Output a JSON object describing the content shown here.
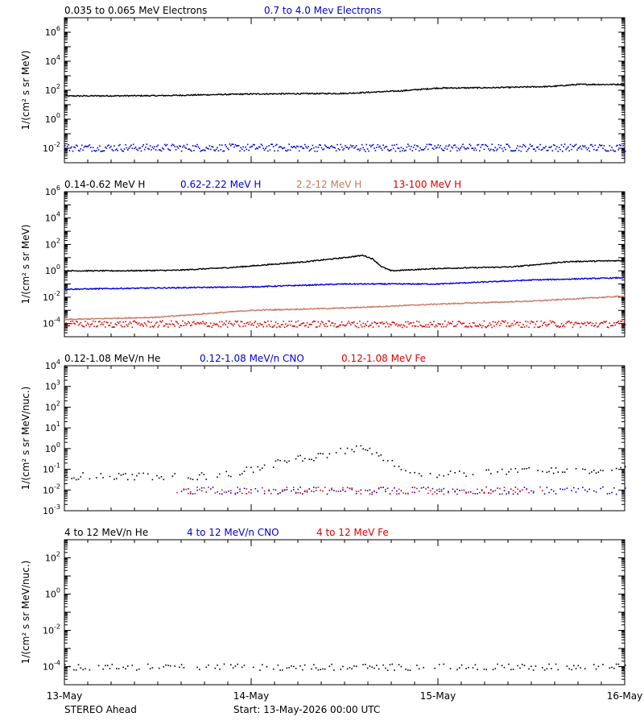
{
  "chart_data": [
    {
      "type": "scatter",
      "yscale": "log",
      "ylim": [
        0.001,
        10000000
      ],
      "ylabel": "1/(cm² s sr MeV)",
      "ytick_exponents": [
        -2,
        0,
        2,
        4,
        6
      ],
      "legend": [
        {
          "text": "0.035 to 0.065 MeV Electrons",
          "color": "#000000"
        },
        {
          "text": "0.7 to 4.0 Mev Electrons",
          "color": "#0000d8"
        }
      ],
      "series": [
        {
          "color": "#000000",
          "style": "line",
          "x": [
            0,
            0.5,
            1.0,
            1.5,
            1.8,
            2.0,
            2.3,
            2.6,
            2.75,
            3.0
          ],
          "y": [
            40,
            42,
            55,
            60,
            90,
            140,
            150,
            180,
            250,
            250
          ]
        },
        {
          "color": "#0000d8",
          "style": "noise",
          "x": [
            0,
            3.0
          ],
          "y": [
            0.012,
            0.012
          ]
        }
      ]
    },
    {
      "type": "scatter",
      "yscale": "log",
      "ylim": [
        1e-05,
        1000000
      ],
      "ylabel": "1/(cm² s sr MeV)",
      "ytick_exponents": [
        -4,
        -2,
        0,
        2,
        4,
        6
      ],
      "legend": [
        {
          "text": "0.14-0.62 MeV H",
          "color": "#000000"
        },
        {
          "text": "0.62-2.22 MeV H",
          "color": "#0000d8"
        },
        {
          "text": "2.2-12 MeV H",
          "color": "#c87860"
        },
        {
          "text": "13-100 MeV H",
          "color": "#e00000"
        }
      ],
      "series": [
        {
          "color": "#000000",
          "style": "line",
          "x": [
            0,
            0.3,
            0.6,
            0.9,
            1.1,
            1.3,
            1.5,
            1.6,
            1.65,
            1.7,
            1.75,
            2.0,
            2.4,
            2.7,
            3.0
          ],
          "y": [
            1.0,
            1.0,
            1.1,
            1.8,
            3,
            5,
            10,
            15,
            8,
            2,
            1,
            1.5,
            2,
            5,
            6
          ]
        },
        {
          "color": "#0000d8",
          "style": "line",
          "x": [
            0,
            0.5,
            1.0,
            1.5,
            2.0,
            2.5,
            3.0
          ],
          "y": [
            0.04,
            0.05,
            0.06,
            0.1,
            0.1,
            0.2,
            0.3
          ]
        },
        {
          "color": "#c87860",
          "style": "line",
          "x": [
            0,
            0.5,
            1.0,
            1.5,
            2.0,
            2.5,
            3.0
          ],
          "y": [
            0.0002,
            0.0003,
            0.001,
            0.0015,
            0.003,
            0.005,
            0.012
          ]
        },
        {
          "color": "#e00000",
          "style": "noise",
          "x": [
            0,
            3.0
          ],
          "y": [
            0.0001,
            0.0001
          ]
        }
      ]
    },
    {
      "type": "scatter",
      "yscale": "log",
      "ylim": [
        0.001,
        10000
      ],
      "ylabel": "1/(cm² s sr MeV/nuc.)",
      "ytick_exponents": [
        -3,
        -2,
        -1,
        0,
        1,
        2,
        3,
        4
      ],
      "legend": [
        {
          "text": "0.12-1.08 MeV/n He",
          "color": "#000000"
        },
        {
          "text": "0.12-1.08 MeV/n CNO",
          "color": "#0000d8"
        },
        {
          "text": "0.12-1.08 MeV Fe",
          "color": "#e00000"
        }
      ],
      "series": [
        {
          "color": "#000000",
          "style": "sparse",
          "x": [
            0,
            0.8,
            1.0,
            1.2,
            1.4,
            1.6,
            1.75,
            1.9,
            2.5,
            3.0
          ],
          "y": [
            0.05,
            0.05,
            0.1,
            0.3,
            0.5,
            1.5,
            0.2,
            0.05,
            0.1,
            0.1
          ]
        },
        {
          "color": "#0000d8",
          "style": "sparse",
          "x": [
            0.6,
            3.0
          ],
          "y": [
            0.01,
            0.01
          ]
        },
        {
          "color": "#e00000",
          "style": "sparse",
          "x": [
            0.6,
            2.6
          ],
          "y": [
            0.01,
            0.01
          ]
        }
      ]
    },
    {
      "type": "scatter",
      "yscale": "log",
      "ylim": [
        1e-05,
        1000
      ],
      "ylabel": "1/(cm² s sr MeV/nuc.)",
      "ytick_exponents": [
        -4,
        -2,
        0,
        2
      ],
      "legend": [
        {
          "text": "4 to 12 MeV/n He",
          "color": "#000000"
        },
        {
          "text": "4 to 12 MeV/n CNO",
          "color": "#0000d8"
        },
        {
          "text": "4 to 12 MeV Fe",
          "color": "#e00000"
        }
      ],
      "series": [
        {
          "color": "#000000",
          "style": "sparse",
          "x": [
            0,
            3.0
          ],
          "y": [
            0.0001,
            0.0001
          ]
        }
      ]
    }
  ],
  "x_axis": {
    "range": [
      0,
      3
    ],
    "ticks": [
      {
        "x": 0,
        "label": "13-May"
      },
      {
        "x": 1,
        "label": "14-May"
      },
      {
        "x": 2,
        "label": "15-May"
      },
      {
        "x": 3,
        "label": "16-May"
      }
    ]
  },
  "footer": {
    "spacecraft": "STEREO Ahead",
    "start": "Start: 13-May-2026 00:00 UTC"
  }
}
